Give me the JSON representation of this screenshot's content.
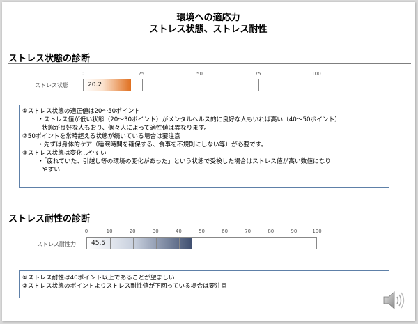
{
  "slide": {
    "title_line1": "環境への適応力",
    "title_line2": "ストレス状態、ストレス耐性"
  },
  "stress_state": {
    "heading": "ストレス状態の診断",
    "bar_label": "ストレス状態",
    "value_text": "20.2",
    "scale_ticks": [
      "0",
      "25",
      "50",
      "75",
      "100"
    ],
    "fill_color": "#e07020",
    "notes": [
      "①ストレス状態の適正値は20～50ポイント",
      "・ストレス値が低い状態（20～30ポイント）がメンタルヘルス的に良好な人もいれば高い（40～50ポイント）",
      "状態が良好な人もおり、個々人によって適性値は異なります。",
      "②50ポイントを常時超える状態が続いている場合は要注意",
      "・先ずは身体的ケア（睡眠時間を確保する、食事を不規則にしない等）が必要です。",
      "③ストレス状態は変化しやすい",
      "・「疲れていた、引越し等の環境の変化があった」という状態で受検した場合はストレス値が高い数値になり",
      "やすい"
    ]
  },
  "stress_resistance": {
    "heading": "ストレス耐性の診断",
    "bar_label": "ストレス耐性力",
    "value_text": "45.5",
    "scale_ticks": [
      "0",
      "10",
      "20",
      "30",
      "40",
      "50",
      "60",
      "70",
      "80",
      "90",
      "100"
    ],
    "fill_color": "#3f4f70",
    "notes": [
      "①ストレス耐性は40ポイント以上であることが望ましい",
      "②ストレス状態のポイントよりストレス耐性値が下回っている場合は要注意"
    ]
  },
  "chart_data": [
    {
      "type": "bar",
      "categories": [
        "ストレス状態"
      ],
      "values": [
        20.2
      ],
      "xlim": [
        0,
        100
      ],
      "ticks": [
        0,
        25,
        50,
        75,
        100
      ]
    },
    {
      "type": "bar",
      "categories": [
        "ストレス耐性力"
      ],
      "values": [
        45.5
      ],
      "xlim": [
        0,
        100
      ],
      "ticks": [
        0,
        10,
        20,
        30,
        40,
        50,
        60,
        70,
        80,
        90,
        100
      ]
    }
  ]
}
